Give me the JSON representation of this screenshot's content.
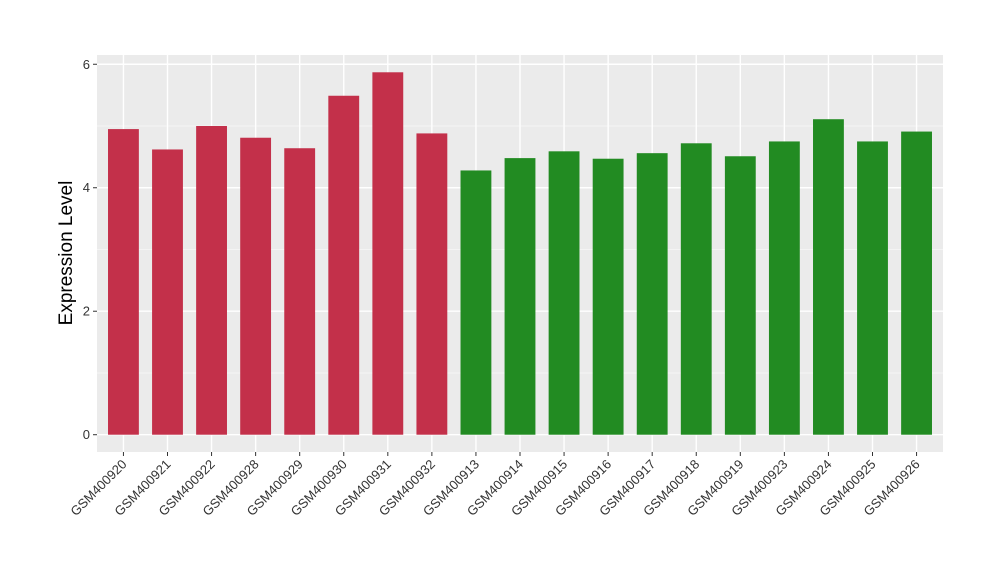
{
  "chart_data": {
    "type": "bar",
    "title": "",
    "xlabel": "",
    "ylabel": "Expression Level",
    "ylim": [
      -0.28,
      6.15
    ],
    "yticks": [
      0,
      2,
      4,
      6
    ],
    "grid": true,
    "background": "#ebebeb",
    "categories": [
      "GSM400920",
      "GSM400921",
      "GSM400922",
      "GSM400928",
      "GSM400929",
      "GSM400930",
      "GSM400931",
      "GSM400932",
      "GSM400913",
      "GSM400914",
      "GSM400915",
      "GSM400916",
      "GSM400917",
      "GSM400918",
      "GSM400919",
      "GSM400923",
      "GSM400924",
      "GSM400925",
      "GSM400926"
    ],
    "values": [
      4.95,
      4.62,
      5.0,
      4.81,
      4.64,
      5.49,
      5.87,
      4.88,
      4.28,
      4.48,
      4.59,
      4.47,
      4.56,
      4.72,
      4.51,
      4.75,
      5.11,
      4.75,
      4.91
    ],
    "groups": [
      "a",
      "a",
      "a",
      "a",
      "a",
      "a",
      "a",
      "a",
      "b",
      "b",
      "b",
      "b",
      "b",
      "b",
      "b",
      "b",
      "b",
      "b",
      "b"
    ],
    "group_colors": {
      "a": "#c3304a",
      "b": "#228b22"
    }
  }
}
